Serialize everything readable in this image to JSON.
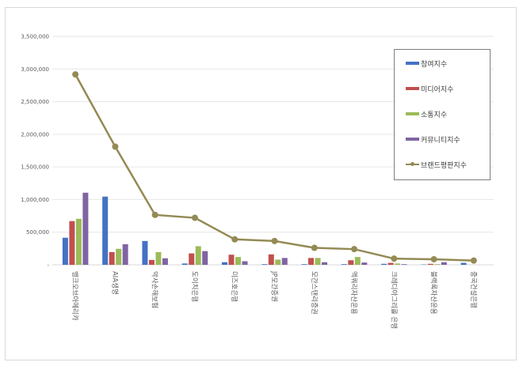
{
  "chart_data": {
    "type": "bar",
    "title": "",
    "xlabel": "",
    "ylabel": "",
    "ylim": [
      0,
      3500000
    ],
    "yticks": [
      0,
      500000,
      1000000,
      1500000,
      2000000,
      2500000,
      3000000,
      3500000
    ],
    "ytick_labels": [
      "-",
      "500,000",
      "1,000,000",
      "1,500,000",
      "2,000,000",
      "2,500,000",
      "3,000,000",
      "3,500,000"
    ],
    "grid": true,
    "legend_position": "right-inset",
    "categories": [
      "뱅크오브아메리카",
      "AIA생명",
      "악사손해보험",
      "도이치은행",
      "미즈호은행",
      "JP모간증권",
      "모간스탠리증권",
      "맥쿼리자산운용",
      "크레디아그리콜 은행",
      "블랙록자산운용",
      "중국건설은행"
    ],
    "series": [
      {
        "name": "참여지수",
        "type": "bar",
        "color": "#4472c4",
        "values": [
          415000,
          1045000,
          365000,
          20000,
          40000,
          10000,
          10000,
          10000,
          15000,
          5000,
          30000
        ]
      },
      {
        "name": "미디어지수",
        "type": "bar",
        "color": "#c0504d",
        "values": [
          670000,
          195000,
          75000,
          175000,
          155000,
          160000,
          105000,
          70000,
          30000,
          15000,
          0
        ]
      },
      {
        "name": "소통지수",
        "type": "bar",
        "color": "#9bbb59",
        "values": [
          705000,
          245000,
          195000,
          285000,
          120000,
          80000,
          105000,
          120000,
          20000,
          10000,
          0
        ]
      },
      {
        "name": "커뮤니티지수",
        "type": "bar",
        "color": "#8064a2",
        "values": [
          1105000,
          315000,
          100000,
          210000,
          55000,
          105000,
          40000,
          35000,
          10000,
          40000,
          0
        ]
      },
      {
        "name": "브랜드평판지수",
        "type": "line",
        "color": "#948a54",
        "values": [
          2917000,
          1810000,
          765000,
          720000,
          390000,
          365000,
          260000,
          240000,
          95000,
          85000,
          65000
        ]
      }
    ]
  },
  "legend": {
    "items": [
      {
        "label": "참여지수",
        "color": "#4472c4",
        "kind": "bar"
      },
      {
        "label": "미디어지수",
        "color": "#c0504d",
        "kind": "bar"
      },
      {
        "label": "소통지수",
        "color": "#9bbb59",
        "kind": "bar"
      },
      {
        "label": "커뮤니티지수",
        "color": "#8064a2",
        "kind": "bar"
      },
      {
        "label": "브랜드평판지수",
        "color": "#948a54",
        "kind": "line"
      }
    ]
  }
}
